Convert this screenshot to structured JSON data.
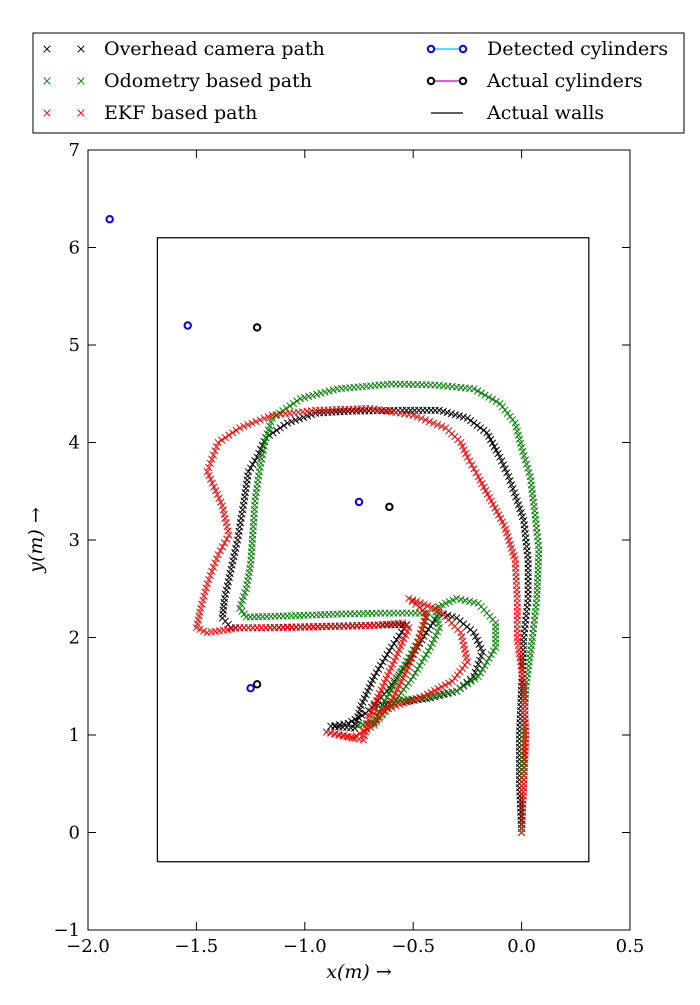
{
  "chart_data": {
    "type": "scatter",
    "title": "",
    "xlabel": "x(m) →",
    "ylabel": "y(m) →",
    "xlim": [
      -2.0,
      0.5
    ],
    "ylim": [
      -1,
      7
    ],
    "x_ticks": [
      "−2.0",
      "−1.5",
      "−1.0",
      "−0.5",
      "0.0",
      "0.5"
    ],
    "y_ticks": [
      "−1",
      "0",
      "1",
      "2",
      "3",
      "4",
      "5",
      "6",
      "7"
    ],
    "grid": false,
    "legend_position": "top",
    "legend": [
      {
        "label": "Overhead camera path",
        "marker": "x",
        "color": "#000000"
      },
      {
        "label": "Odometry based path",
        "marker": "x",
        "color": "#008000"
      },
      {
        "label": "EKF based path",
        "marker": "x",
        "color": "#ff0000"
      },
      {
        "label": "Detected cylinders",
        "marker": "o-line",
        "color": "#0000ff",
        "line_color": "#00bfff"
      },
      {
        "label": "Actual cylinders",
        "marker": "o-line",
        "color": "#000000",
        "line_color": "#bf00bf"
      },
      {
        "label": "Actual walls",
        "marker": "line",
        "color": "#000000"
      }
    ],
    "walls": {
      "x": [
        -1.68,
        0.31,
        0.31,
        -1.68,
        -1.68
      ],
      "y": [
        -0.3,
        -0.3,
        6.1,
        6.1,
        -0.3
      ]
    },
    "detected_cylinders": {
      "x": [
        -1.9,
        -1.54,
        -0.75,
        -1.25
      ],
      "y": [
        6.29,
        5.2,
        3.39,
        1.48
      ]
    },
    "actual_cylinders": {
      "x": [
        -1.22,
        -0.61,
        -1.22
      ],
      "y": [
        5.18,
        3.34,
        1.52
      ]
    },
    "series": [
      {
        "name": "Overhead camera path",
        "color": "#000000",
        "waypoints": [
          [
            0.0,
            0.0
          ],
          [
            -0.01,
            0.5
          ],
          [
            -0.01,
            1.0
          ],
          [
            0.0,
            1.5
          ],
          [
            0.01,
            2.0
          ],
          [
            0.03,
            2.4
          ],
          [
            0.03,
            2.8
          ],
          [
            0.01,
            3.2
          ],
          [
            -0.02,
            3.4
          ],
          [
            -0.06,
            3.65
          ],
          [
            -0.1,
            3.85
          ],
          [
            -0.16,
            4.1
          ],
          [
            -0.25,
            4.25
          ],
          [
            -0.38,
            4.33
          ],
          [
            -0.55,
            4.33
          ],
          [
            -0.8,
            4.32
          ],
          [
            -0.95,
            4.3
          ],
          [
            -1.08,
            4.2
          ],
          [
            -1.18,
            4.05
          ],
          [
            -1.22,
            3.85
          ],
          [
            -1.26,
            3.7
          ],
          [
            -1.28,
            3.4
          ],
          [
            -1.31,
            3.0
          ],
          [
            -1.34,
            2.7
          ],
          [
            -1.37,
            2.4
          ],
          [
            -1.38,
            2.2
          ],
          [
            -1.34,
            2.1
          ],
          [
            -1.2,
            2.1
          ],
          [
            -1.0,
            2.11
          ],
          [
            -0.8,
            2.12
          ],
          [
            -0.62,
            2.13
          ],
          [
            -0.53,
            2.13
          ],
          [
            -0.6,
            1.9
          ],
          [
            -0.68,
            1.6
          ],
          [
            -0.74,
            1.3
          ],
          [
            -0.77,
            1.07
          ],
          [
            -0.88,
            1.09
          ],
          [
            -0.8,
            1.12
          ],
          [
            -0.72,
            1.22
          ],
          [
            -0.62,
            1.45
          ],
          [
            -0.52,
            1.75
          ],
          [
            -0.44,
            2.05
          ],
          [
            -0.38,
            2.25
          ],
          [
            -0.3,
            2.2
          ],
          [
            -0.22,
            2.05
          ],
          [
            -0.18,
            1.85
          ],
          [
            -0.22,
            1.6
          ],
          [
            -0.3,
            1.45
          ],
          [
            -0.42,
            1.38
          ],
          [
            -0.57,
            1.33
          ],
          [
            -0.68,
            1.3
          ]
        ]
      },
      {
        "name": "Odometry based path",
        "color": "#008000",
        "waypoints": [
          [
            0.0,
            0.0
          ],
          [
            0.01,
            0.5
          ],
          [
            0.01,
            1.0
          ],
          [
            0.02,
            1.5
          ],
          [
            0.05,
            2.0
          ],
          [
            0.07,
            2.4
          ],
          [
            0.08,
            2.9
          ],
          [
            0.06,
            3.3
          ],
          [
            0.04,
            3.65
          ],
          [
            0.0,
            3.95
          ],
          [
            -0.03,
            4.2
          ],
          [
            -0.1,
            4.4
          ],
          [
            -0.22,
            4.55
          ],
          [
            -0.4,
            4.59
          ],
          [
            -0.6,
            4.6
          ],
          [
            -0.85,
            4.55
          ],
          [
            -1.02,
            4.45
          ],
          [
            -1.15,
            4.25
          ],
          [
            -1.18,
            4.05
          ],
          [
            -1.21,
            3.7
          ],
          [
            -1.23,
            3.4
          ],
          [
            -1.24,
            3.05
          ],
          [
            -1.25,
            2.75
          ],
          [
            -1.27,
            2.5
          ],
          [
            -1.3,
            2.3
          ],
          [
            -1.27,
            2.21
          ],
          [
            -1.1,
            2.22
          ],
          [
            -0.85,
            2.24
          ],
          [
            -0.65,
            2.25
          ],
          [
            -0.43,
            2.25
          ],
          [
            -0.48,
            1.95
          ],
          [
            -0.57,
            1.6
          ],
          [
            -0.63,
            1.35
          ],
          [
            -0.68,
            1.12
          ],
          [
            -0.75,
            1.1
          ],
          [
            -0.68,
            1.13
          ],
          [
            -0.6,
            1.3
          ],
          [
            -0.5,
            1.6
          ],
          [
            -0.42,
            1.9
          ],
          [
            -0.38,
            2.1
          ],
          [
            -0.4,
            2.3
          ],
          [
            -0.3,
            2.4
          ],
          [
            -0.2,
            2.35
          ],
          [
            -0.12,
            2.15
          ],
          [
            -0.12,
            1.9
          ],
          [
            -0.2,
            1.6
          ],
          [
            -0.3,
            1.45
          ],
          [
            -0.45,
            1.38
          ],
          [
            -0.6,
            1.35
          ]
        ]
      },
      {
        "name": "EKF based path",
        "color": "#ff0000",
        "waypoints": [
          [
            0.0,
            0.0
          ],
          [
            0.01,
            0.5
          ],
          [
            0.02,
            1.0
          ],
          [
            0.01,
            1.5
          ],
          [
            -0.02,
            2.0
          ],
          [
            -0.02,
            2.4
          ],
          [
            -0.03,
            2.8
          ],
          [
            -0.08,
            3.15
          ],
          [
            -0.14,
            3.4
          ],
          [
            -0.2,
            3.65
          ],
          [
            -0.25,
            3.85
          ],
          [
            -0.28,
            4.0
          ],
          [
            -0.35,
            4.15
          ],
          [
            -0.5,
            4.28
          ],
          [
            -0.7,
            4.35
          ],
          [
            -0.95,
            4.33
          ],
          [
            -1.15,
            4.28
          ],
          [
            -1.3,
            4.15
          ],
          [
            -1.4,
            4.0
          ],
          [
            -1.45,
            3.7
          ],
          [
            -1.38,
            3.35
          ],
          [
            -1.35,
            3.05
          ],
          [
            -1.4,
            2.85
          ],
          [
            -1.45,
            2.55
          ],
          [
            -1.48,
            2.3
          ],
          [
            -1.5,
            2.1
          ],
          [
            -1.45,
            2.05
          ],
          [
            -1.3,
            2.1
          ],
          [
            -1.1,
            2.1
          ],
          [
            -0.9,
            2.11
          ],
          [
            -0.7,
            2.12
          ],
          [
            -0.55,
            2.15
          ],
          [
            -0.52,
            2.1
          ],
          [
            -0.58,
            1.8
          ],
          [
            -0.64,
            1.5
          ],
          [
            -0.7,
            1.2
          ],
          [
            -0.73,
            0.95
          ],
          [
            -0.9,
            1.03
          ],
          [
            -0.78,
            0.97
          ],
          [
            -0.68,
            1.1
          ],
          [
            -0.6,
            1.35
          ],
          [
            -0.52,
            1.7
          ],
          [
            -0.47,
            2.0
          ],
          [
            -0.44,
            2.25
          ],
          [
            -0.52,
            2.4
          ],
          [
            -0.38,
            2.28
          ],
          [
            -0.28,
            2.05
          ],
          [
            -0.25,
            1.75
          ],
          [
            -0.32,
            1.55
          ],
          [
            -0.45,
            1.4
          ],
          [
            -0.58,
            1.3
          ],
          [
            -0.68,
            1.22
          ]
        ]
      }
    ]
  }
}
